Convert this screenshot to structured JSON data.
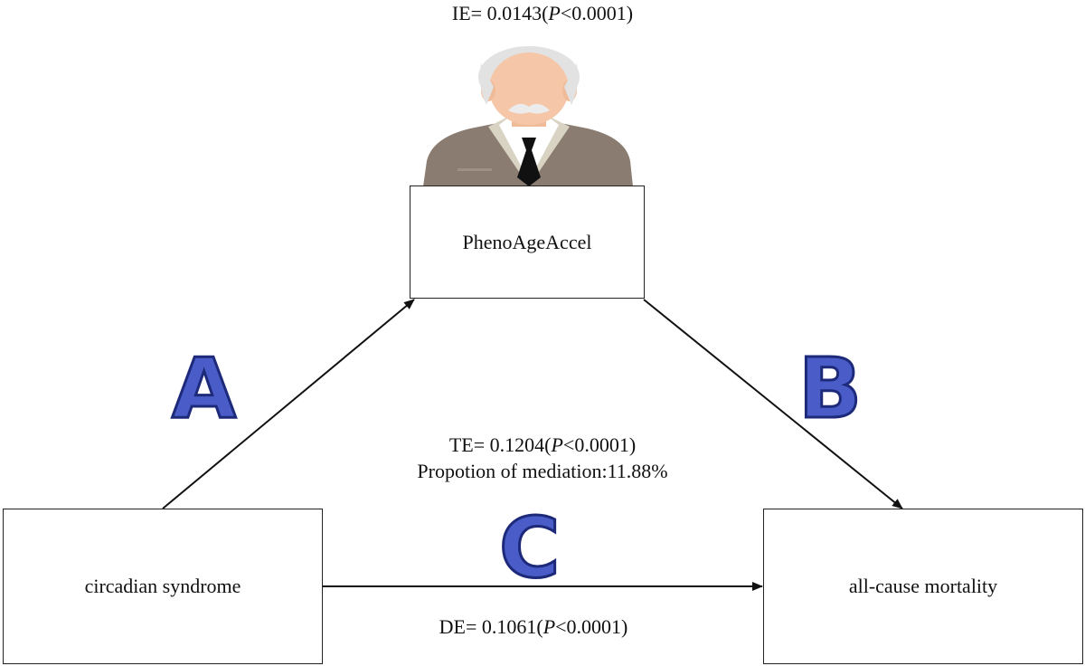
{
  "nodes": {
    "mediator": "PhenoAgeAccel",
    "exposure": "circadian syndrome",
    "outcome": "all-cause mortality"
  },
  "paths": {
    "a": "A",
    "b": "B",
    "c": "C"
  },
  "effects": {
    "ie": {
      "prefix": "IE=  0.0143(",
      "p_symbol": "P",
      "p_rest": "<0.0001)"
    },
    "te": {
      "prefix": "TE= 0.1204(",
      "p_symbol": "P",
      "p_rest": "<0.0001)"
    },
    "proportion": "Propotion of mediation:11.88%",
    "de": {
      "prefix": "DE=  0.1061(",
      "p_symbol": "P",
      "p_rest": "<0.0001)"
    }
  },
  "colors": {
    "letter_fill": "#4a5cc8",
    "letter_stroke": "#1d2a7a",
    "suit": "#8a7c70",
    "skin": "#f5c6a8",
    "hair": "#e2e2e2"
  },
  "icons": {
    "mediator_figure": "elderly-man-icon"
  }
}
